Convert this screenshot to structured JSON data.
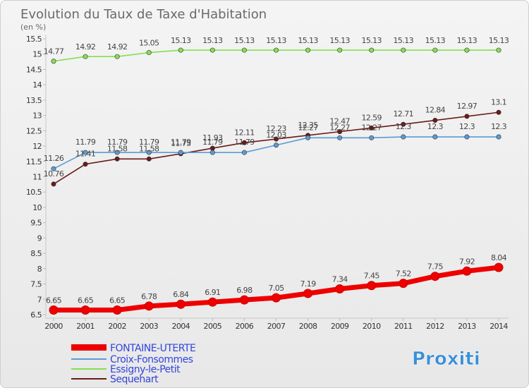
{
  "chart_data": {
    "type": "line",
    "title": "Evolution du Taux de Taxe d'Habitation",
    "subtitle": "(en %)",
    "x": [
      "2000",
      "2001",
      "2002",
      "2003",
      "2004",
      "2005",
      "2006",
      "2007",
      "2008",
      "2009",
      "2010",
      "2011",
      "2012",
      "2013",
      "2014"
    ],
    "y_ticks": [
      "6.5",
      "7",
      "7.5",
      "8",
      "8.5",
      "9",
      "9.5",
      "10",
      "10.5",
      "11",
      "11.5",
      "12",
      "12.5",
      "13",
      "13.5",
      "14",
      "14.5",
      "15",
      "15.5"
    ],
    "ylim": [
      6.5,
      15.5
    ],
    "grid": false,
    "legend_position": "bottom-left",
    "series": [
      {
        "name": "FONTAINE-UTERTE",
        "color": "#ee0000",
        "values": [
          6.65,
          6.65,
          6.65,
          6.78,
          6.84,
          6.91,
          6.98,
          7.05,
          7.19,
          7.34,
          7.45,
          7.52,
          7.75,
          7.92,
          8.04
        ],
        "labels": [
          "6.65",
          "6.65",
          "6.65",
          "6.78",
          "6.84",
          "6.91",
          "6.98",
          "7.05",
          "7.19",
          "7.34",
          "7.45",
          "7.52",
          "7.75",
          "7.92",
          "8.04"
        ]
      },
      {
        "name": "Croix-Fonsommes",
        "color": "#5b9bd5",
        "values": [
          11.26,
          11.79,
          11.79,
          11.79,
          11.79,
          11.79,
          11.79,
          12.03,
          12.27,
          12.27,
          12.27,
          12.3,
          12.3,
          12.3,
          12.3
        ],
        "labels": [
          "11.26",
          "11.79",
          "11.79",
          "11.79",
          "11.79",
          "11.79",
          "11.79",
          "12.03",
          "12.27",
          "12.27",
          "12.27",
          "12.3",
          "12.3",
          "12.3",
          "12.3"
        ]
      },
      {
        "name": "Essigny-le-Petit",
        "color": "#88dd55",
        "values": [
          14.77,
          14.92,
          14.92,
          15.05,
          15.13,
          15.13,
          15.13,
          15.13,
          15.13,
          15.13,
          15.13,
          15.13,
          15.13,
          15.13,
          15.13
        ],
        "labels": [
          "14.77",
          "14.92",
          "14.92",
          "15.05",
          "15.13",
          "15.13",
          "15.13",
          "15.13",
          "15.13",
          "15.13",
          "15.13",
          "15.13",
          "15.13",
          "15.13",
          "15.13"
        ]
      },
      {
        "name": "Sequehart",
        "color": "#6b1a1a",
        "values": [
          10.76,
          11.41,
          11.58,
          11.58,
          11.75,
          11.93,
          12.11,
          12.23,
          12.35,
          12.47,
          12.59,
          12.71,
          12.84,
          12.97,
          13.1
        ],
        "labels": [
          "10.76",
          "11.41",
          "11.58",
          "11.58",
          "11.75",
          "11.93",
          "12.11",
          "12.23",
          "12.35",
          "12.47",
          "12.59",
          "12.71",
          "12.84",
          "12.97",
          "13.1"
        ]
      }
    ]
  },
  "logo": {
    "text": "Proxiti"
  }
}
